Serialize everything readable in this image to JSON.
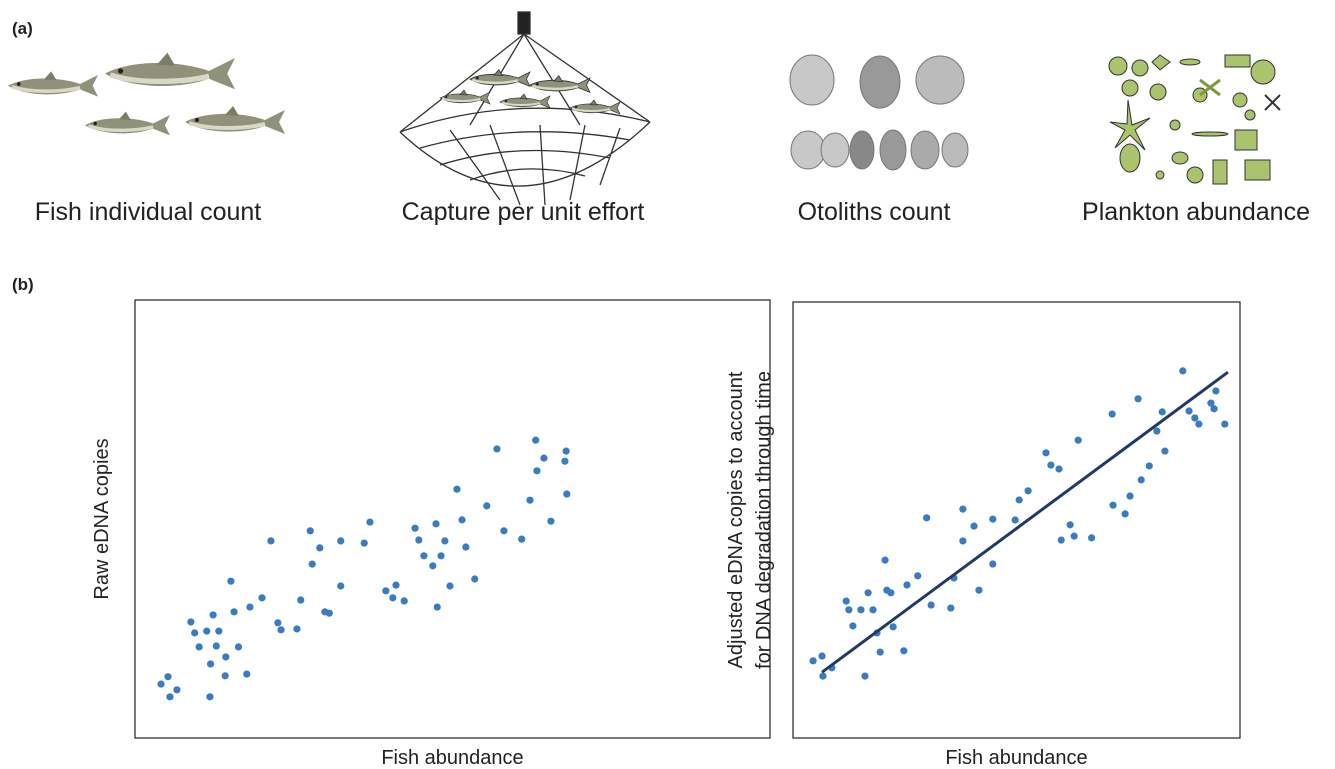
{
  "figure": {
    "panel_a": {
      "label": "(a)",
      "captions": [
        "Fish individual count",
        "Capture per unit effort",
        "Otoliths count",
        "Plankton abundance"
      ]
    },
    "panel_b": {
      "label": "(b)"
    }
  },
  "chart_data": [
    {
      "type": "scatter",
      "xlabel": "Fish abundance",
      "ylabel": [
        "Raw eDNA copies"
      ],
      "color": "#3b7bc0",
      "xlim": [
        0,
        100
      ],
      "ylim": [
        0,
        100
      ],
      "x": [
        4.1,
        5.2,
        5.5,
        6.6,
        8.8,
        9.4,
        10.1,
        11.3,
        11.9,
        11.8,
        12.3,
        12.8,
        13.2,
        14.2,
        14.3,
        15.1,
        15.6,
        16.3,
        17.6,
        18.1,
        20.0,
        21.4,
        22.5,
        23.0,
        25.5,
        26.1,
        27.6,
        27.9,
        29.1,
        29.9,
        30.6,
        32.4,
        32.4,
        36.1,
        37.0,
        39.5,
        40.6,
        41.1,
        42.4,
        44.1,
        44.7,
        45.5,
        46.9,
        47.4,
        47.6,
        48.2,
        48.8,
        49.6,
        50.7,
        51.5,
        52.1,
        53.5,
        55.4,
        57.0,
        58.1,
        60.9,
        62.2,
        63.1,
        63.3,
        64.4,
        65.5,
        67.7,
        67.9,
        68.0
      ],
      "values": [
        12.3,
        14.0,
        9.4,
        11.0,
        26.5,
        24.0,
        20.8,
        24.4,
        16.9,
        9.4,
        28.1,
        21.0,
        24.4,
        14.2,
        18.5,
        35.8,
        28.8,
        20.8,
        14.6,
        29.9,
        32.0,
        45.0,
        26.3,
        24.7,
        24.9,
        31.5,
        47.3,
        39.7,
        43.4,
        28.8,
        28.5,
        45.0,
        34.7,
        44.5,
        49.3,
        33.6,
        32.0,
        34.9,
        31.3,
        47.9,
        45.2,
        41.6,
        39.3,
        48.9,
        29.9,
        41.6,
        45.0,
        34.7,
        56.8,
        49.8,
        43.6,
        36.3,
        53.0,
        66.0,
        47.3,
        45.4,
        54.3,
        68.0,
        61.0,
        63.9,
        49.5,
        63.2,
        65.5,
        55.7
      ]
    },
    {
      "type": "scatter",
      "xlabel": "Fish abundance",
      "ylabel": [
        "Adjusted eDNA copies to account",
        "for DNA degradation through time"
      ],
      "color": "#3b7bc0",
      "xlim": [
        0,
        100
      ],
      "ylim": [
        0,
        100
      ],
      "x": [
        4.5,
        6.5,
        6.7,
        8.7,
        11.9,
        12.5,
        13.4,
        15.2,
        16.1,
        16.8,
        17.9,
        18.8,
        19.5,
        20.6,
        21.0,
        21.9,
        22.4,
        24.8,
        25.5,
        27.9,
        29.9,
        30.9,
        35.3,
        36.0,
        38.0,
        38.0,
        40.5,
        41.6,
        44.7,
        44.7,
        49.7,
        50.6,
        52.6,
        56.6,
        57.7,
        59.5,
        60.0,
        62.0,
        62.9,
        63.8,
        66.8,
        71.4,
        71.6,
        74.3,
        75.4,
        77.2,
        77.9,
        79.7,
        81.4,
        82.6,
        83.2,
        87.2,
        88.6,
        89.9,
        90.8,
        93.5,
        94.2,
        94.6,
        96.6
      ],
      "values": [
        17.7,
        18.8,
        14.2,
        16.1,
        31.4,
        29.4,
        25.7,
        29.4,
        14.2,
        33.3,
        29.4,
        24.1,
        19.7,
        40.8,
        33.9,
        33.3,
        25.5,
        20.0,
        35.1,
        37.2,
        50.5,
        30.5,
        29.8,
        36.7,
        52.5,
        45.2,
        48.6,
        33.9,
        50.2,
        39.9,
        50.0,
        54.6,
        56.7,
        65.4,
        62.6,
        61.7,
        45.4,
        48.9,
        46.3,
        68.3,
        45.9,
        74.3,
        53.4,
        51.4,
        55.5,
        77.8,
        59.2,
        62.4,
        70.4,
        74.8,
        65.8,
        84.2,
        75.0,
        73.4,
        72.0,
        76.8,
        75.5,
        79.6,
        72.0
      ],
      "trend": {
        "color": "#1f3a66",
        "x": [
          6.5,
          97.3
        ],
        "values": [
          15.1,
          83.9
        ]
      }
    }
  ]
}
